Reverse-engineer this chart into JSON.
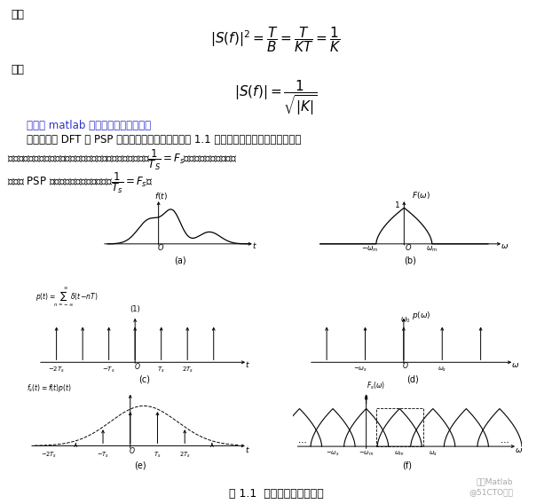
{
  "bg_color": "#ffffff",
  "title": "图 1.1  理想抽样信号的频谱",
  "watermark_line1": "天天Matlab",
  "watermark_line2": "@51CTO博客",
  "text_color": "#000000",
  "link_color": "#3333cc"
}
